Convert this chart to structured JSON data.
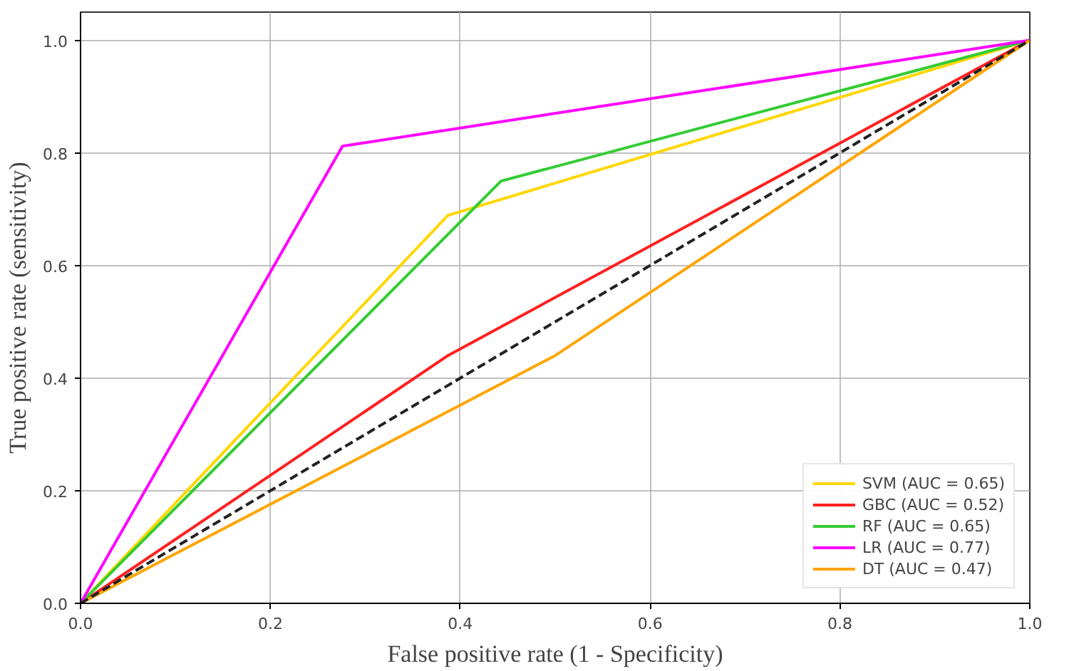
{
  "chart_data": {
    "type": "line",
    "xlabel": "False positive rate (1 - Specificity)",
    "ylabel": "True positive rate (sensitivity)",
    "xlim": [
      0,
      1
    ],
    "ylim": [
      0,
      1.05
    ],
    "xticks": [
      {
        "value": 0,
        "label": "0.0"
      },
      0.2,
      0.4,
      0.6,
      0.8,
      {
        "value": 1,
        "label": "1.0"
      }
    ],
    "yticks": [
      {
        "value": 0,
        "label": "0.0"
      },
      0.2,
      0.4,
      0.6,
      0.8,
      {
        "value": 1,
        "label": "1.0"
      }
    ],
    "grid": true,
    "legend": "bottom right",
    "marker": "none",
    "series": [
      {
        "name": "SVM (AUC = 0.65)",
        "color": "#ffd700",
        "x": [
          0,
          0.387,
          1
        ],
        "values": [
          0,
          0.689,
          1
        ]
      },
      {
        "name": "GBC (AUC = 0.52)",
        "color": "#ff2020",
        "x": [
          0,
          0.387,
          1
        ],
        "values": [
          0,
          0.44,
          1
        ]
      },
      {
        "name": "RF (AUC = 0.65)",
        "color": "#33cc33",
        "x": [
          0,
          0.443,
          1
        ],
        "values": [
          0,
          0.75,
          1
        ]
      },
      {
        "name": "LR (AUC = 0.77)",
        "color": "#ff00ff",
        "x": [
          0,
          0.276,
          1
        ],
        "values": [
          0,
          0.812,
          1
        ]
      },
      {
        "name": "DT (AUC = 0.47)",
        "color": "#ffa500",
        "x": [
          0,
          0.5,
          1
        ],
        "values": [
          0,
          0.44,
          1
        ]
      },
      {
        "color": "#222222",
        "x": [
          0,
          1
        ],
        "values": [
          0,
          1
        ],
        "line_style": "dashed"
      }
    ]
  }
}
